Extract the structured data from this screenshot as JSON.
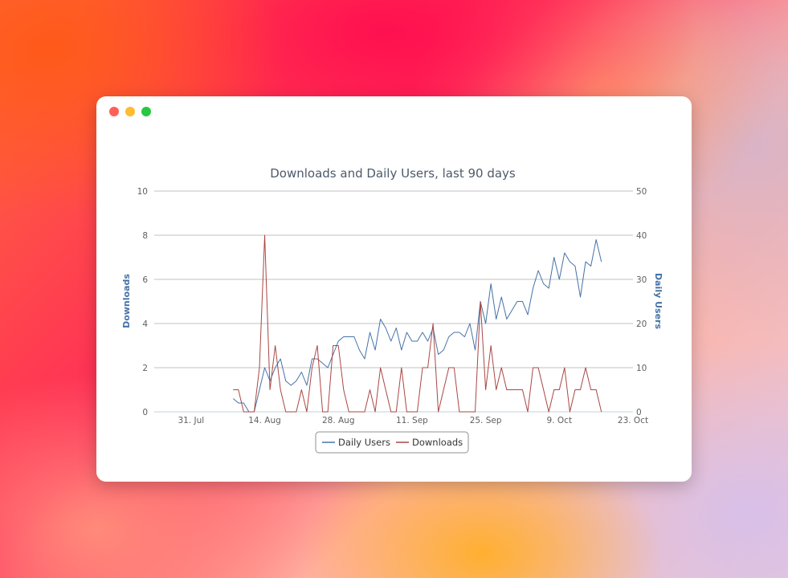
{
  "window": {
    "controls": {
      "close_color": "#ff5f57",
      "minimize_color": "#febc2e",
      "zoom_color": "#28c840"
    }
  },
  "chart_data": {
    "type": "line",
    "title": "Downloads and Daily Users, last 90 days",
    "x_tick_labels": [
      "31. Jul",
      "14. Aug",
      "28. Aug",
      "11. Sep",
      "25. Sep",
      "9. Oct",
      "23. Oct"
    ],
    "y_left": {
      "label": "Downloads",
      "range": [
        0,
        10
      ],
      "ticks": [
        "0",
        "2",
        "4",
        "6",
        "8",
        "10"
      ]
    },
    "y_right": {
      "label": "Daily Users",
      "range": [
        0,
        50
      ],
      "ticks": [
        "0",
        "10",
        "20",
        "30",
        "40",
        "50"
      ]
    },
    "grid": true,
    "legend_position": "bottom-center",
    "colors": {
      "daily_users": "#4572a7",
      "downloads": "#aa4643"
    },
    "series": [
      {
        "name": "Daily Users",
        "axis": "right",
        "color": "#4572a7",
        "points": [
          [
            "2023-08-08",
            3
          ],
          [
            "2023-08-09",
            2
          ],
          [
            "2023-08-10",
            2
          ],
          [
            "2023-08-11",
            0
          ],
          [
            "2023-08-12",
            0
          ],
          [
            "2023-08-13",
            5
          ],
          [
            "2023-08-14",
            10
          ],
          [
            "2023-08-15",
            7
          ],
          [
            "2023-08-16",
            10
          ],
          [
            "2023-08-17",
            12
          ],
          [
            "2023-08-18",
            7
          ],
          [
            "2023-08-19",
            6
          ],
          [
            "2023-08-20",
            7
          ],
          [
            "2023-08-21",
            9
          ],
          [
            "2023-08-22",
            6
          ],
          [
            "2023-08-23",
            12
          ],
          [
            "2023-08-24",
            12
          ],
          [
            "2023-08-25",
            11
          ],
          [
            "2023-08-26",
            10
          ],
          [
            "2023-08-27",
            13
          ],
          [
            "2023-08-28",
            16
          ],
          [
            "2023-08-29",
            17
          ],
          [
            "2023-08-30",
            17
          ],
          [
            "2023-08-31",
            17
          ],
          [
            "2023-09-01",
            14
          ],
          [
            "2023-09-02",
            12
          ],
          [
            "2023-09-03",
            18
          ],
          [
            "2023-09-04",
            14
          ],
          [
            "2023-09-05",
            21
          ],
          [
            "2023-09-06",
            19
          ],
          [
            "2023-09-07",
            16
          ],
          [
            "2023-09-08",
            19
          ],
          [
            "2023-09-09",
            14
          ],
          [
            "2023-09-10",
            18
          ],
          [
            "2023-09-11",
            16
          ],
          [
            "2023-09-12",
            16
          ],
          [
            "2023-09-13",
            18
          ],
          [
            "2023-09-14",
            16
          ],
          [
            "2023-09-15",
            19
          ],
          [
            "2023-09-16",
            13
          ],
          [
            "2023-09-17",
            14
          ],
          [
            "2023-09-18",
            17
          ],
          [
            "2023-09-19",
            18
          ],
          [
            "2023-09-20",
            18
          ],
          [
            "2023-09-21",
            17
          ],
          [
            "2023-09-22",
            20
          ],
          [
            "2023-09-23",
            14
          ],
          [
            "2023-09-24",
            25
          ],
          [
            "2023-09-25",
            20
          ],
          [
            "2023-09-26",
            29
          ],
          [
            "2023-09-27",
            21
          ],
          [
            "2023-09-28",
            26
          ],
          [
            "2023-09-29",
            21
          ],
          [
            "2023-09-30",
            23
          ],
          [
            "2023-10-01",
            25
          ],
          [
            "2023-10-02",
            25
          ],
          [
            "2023-10-03",
            22
          ],
          [
            "2023-10-04",
            28
          ],
          [
            "2023-10-05",
            32
          ],
          [
            "2023-10-06",
            29
          ],
          [
            "2023-10-07",
            28
          ],
          [
            "2023-10-08",
            35
          ],
          [
            "2023-10-09",
            30
          ],
          [
            "2023-10-10",
            36
          ],
          [
            "2023-10-11",
            34
          ],
          [
            "2023-10-12",
            33
          ],
          [
            "2023-10-13",
            26
          ],
          [
            "2023-10-14",
            34
          ],
          [
            "2023-10-15",
            33
          ],
          [
            "2023-10-16",
            39
          ],
          [
            "2023-10-17",
            34
          ]
        ]
      },
      {
        "name": "Downloads",
        "axis": "left",
        "color": "#aa4643",
        "points": [
          [
            "2023-08-08",
            1
          ],
          [
            "2023-08-09",
            1
          ],
          [
            "2023-08-10",
            0
          ],
          [
            "2023-08-11",
            0
          ],
          [
            "2023-08-12",
            0
          ],
          [
            "2023-08-13",
            2
          ],
          [
            "2023-08-14",
            8
          ],
          [
            "2023-08-15",
            1
          ],
          [
            "2023-08-16",
            3
          ],
          [
            "2023-08-17",
            1
          ],
          [
            "2023-08-18",
            0
          ],
          [
            "2023-08-19",
            0
          ],
          [
            "2023-08-20",
            0
          ],
          [
            "2023-08-21",
            1
          ],
          [
            "2023-08-22",
            0
          ],
          [
            "2023-08-23",
            2
          ],
          [
            "2023-08-24",
            3
          ],
          [
            "2023-08-25",
            0
          ],
          [
            "2023-08-26",
            0
          ],
          [
            "2023-08-27",
            3
          ],
          [
            "2023-08-28",
            3
          ],
          [
            "2023-08-29",
            1
          ],
          [
            "2023-08-30",
            0
          ],
          [
            "2023-08-31",
            0
          ],
          [
            "2023-09-01",
            0
          ],
          [
            "2023-09-02",
            0
          ],
          [
            "2023-09-03",
            1
          ],
          [
            "2023-09-04",
            0
          ],
          [
            "2023-09-05",
            2
          ],
          [
            "2023-09-06",
            1
          ],
          [
            "2023-09-07",
            0
          ],
          [
            "2023-09-08",
            0
          ],
          [
            "2023-09-09",
            2
          ],
          [
            "2023-09-10",
            0
          ],
          [
            "2023-09-11",
            0
          ],
          [
            "2023-09-12",
            0
          ],
          [
            "2023-09-13",
            2
          ],
          [
            "2023-09-14",
            2
          ],
          [
            "2023-09-15",
            4
          ],
          [
            "2023-09-16",
            0
          ],
          [
            "2023-09-17",
            1
          ],
          [
            "2023-09-18",
            2
          ],
          [
            "2023-09-19",
            2
          ],
          [
            "2023-09-20",
            0
          ],
          [
            "2023-09-21",
            0
          ],
          [
            "2023-09-22",
            0
          ],
          [
            "2023-09-23",
            0
          ],
          [
            "2023-09-24",
            5
          ],
          [
            "2023-09-25",
            1
          ],
          [
            "2023-09-26",
            3
          ],
          [
            "2023-09-27",
            1
          ],
          [
            "2023-09-28",
            2
          ],
          [
            "2023-09-29",
            1
          ],
          [
            "2023-09-30",
            1
          ],
          [
            "2023-10-01",
            1
          ],
          [
            "2023-10-02",
            1
          ],
          [
            "2023-10-03",
            0
          ],
          [
            "2023-10-04",
            2
          ],
          [
            "2023-10-05",
            2
          ],
          [
            "2023-10-06",
            1
          ],
          [
            "2023-10-07",
            0
          ],
          [
            "2023-10-08",
            1
          ],
          [
            "2023-10-09",
            1
          ],
          [
            "2023-10-10",
            2
          ],
          [
            "2023-10-11",
            0
          ],
          [
            "2023-10-12",
            1
          ],
          [
            "2023-10-13",
            1
          ],
          [
            "2023-10-14",
            2
          ],
          [
            "2023-10-15",
            1
          ],
          [
            "2023-10-16",
            1
          ],
          [
            "2023-10-17",
            0
          ]
        ]
      }
    ]
  }
}
